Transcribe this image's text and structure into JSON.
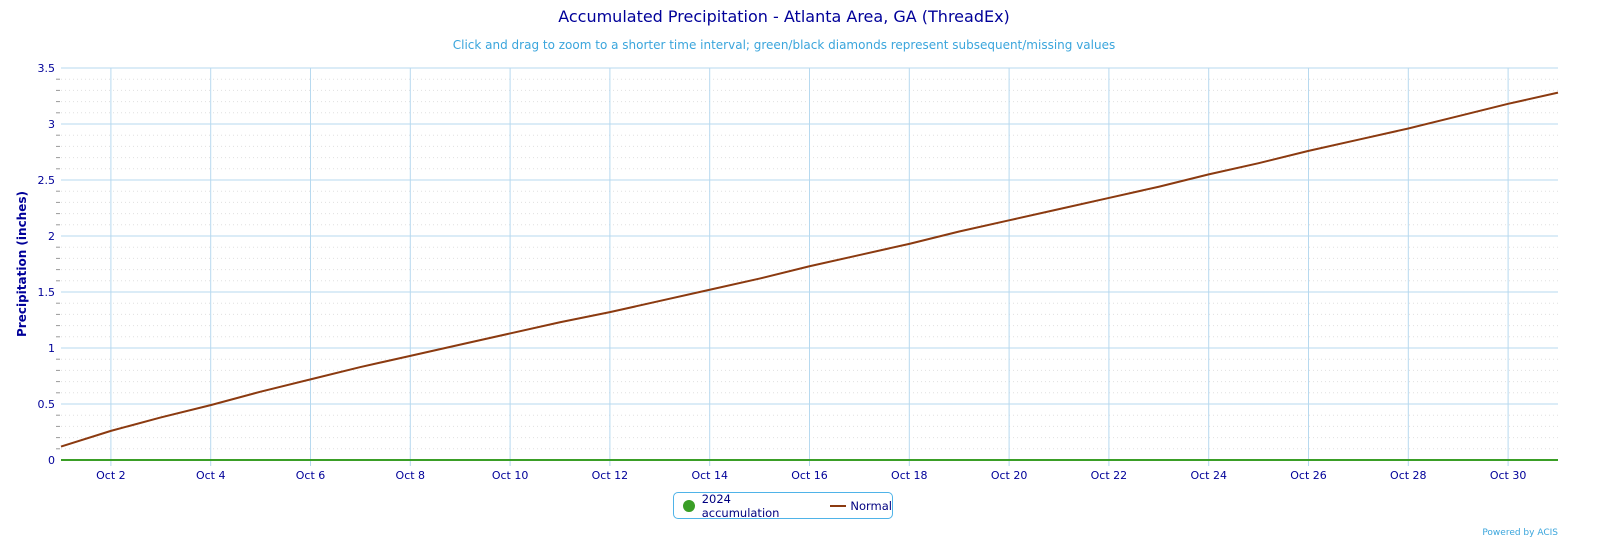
{
  "chart_data": {
    "type": "line",
    "title": "Accumulated Precipitation - Atlanta Area, GA (ThreadEx)",
    "subtitle": "Click and drag to zoom to a shorter time interval; green/black diamonds represent subsequent/missing values",
    "ylabel": "Precipitation (inches)",
    "xlabel": "",
    "ylim": [
      0,
      3.5
    ],
    "yticks": [
      "0",
      "0.5",
      "1",
      "1.5",
      "2",
      "2.5",
      "3",
      "3.5"
    ],
    "xticks": [
      "Oct 2",
      "Oct 4",
      "Oct 6",
      "Oct 8",
      "Oct 10",
      "Oct 12",
      "Oct 14",
      "Oct 16",
      "Oct 18",
      "Oct 20",
      "Oct 22",
      "Oct 24",
      "Oct 26",
      "Oct 28",
      "Oct 30"
    ],
    "x": [
      1,
      2,
      3,
      4,
      5,
      6,
      7,
      8,
      9,
      10,
      11,
      12,
      13,
      14,
      15,
      16,
      17,
      18,
      19,
      20,
      21,
      22,
      23,
      24,
      25,
      26,
      27,
      28,
      29,
      30,
      31
    ],
    "grid": true,
    "legend_placement": "bottom-center",
    "series": [
      {
        "name": "2024 accumulation",
        "color": "#3a9e26",
        "values": [
          0,
          0,
          0,
          0,
          0,
          0,
          0,
          0,
          0,
          0,
          0,
          0,
          0,
          0,
          0,
          0,
          0,
          0,
          0,
          0,
          0,
          0,
          0,
          0,
          0,
          0,
          0,
          0,
          0,
          0,
          0
        ]
      },
      {
        "name": "Normal",
        "color": "#8b3a10",
        "values": [
          0.12,
          0.26,
          0.38,
          0.49,
          0.61,
          0.72,
          0.83,
          0.93,
          1.03,
          1.13,
          1.23,
          1.32,
          1.42,
          1.52,
          1.62,
          1.73,
          1.83,
          1.93,
          2.04,
          2.14,
          2.24,
          2.34,
          2.44,
          2.55,
          2.65,
          2.76,
          2.86,
          2.96,
          3.07,
          3.18,
          3.28
        ]
      }
    ]
  },
  "credit": "Powered by ACIS"
}
